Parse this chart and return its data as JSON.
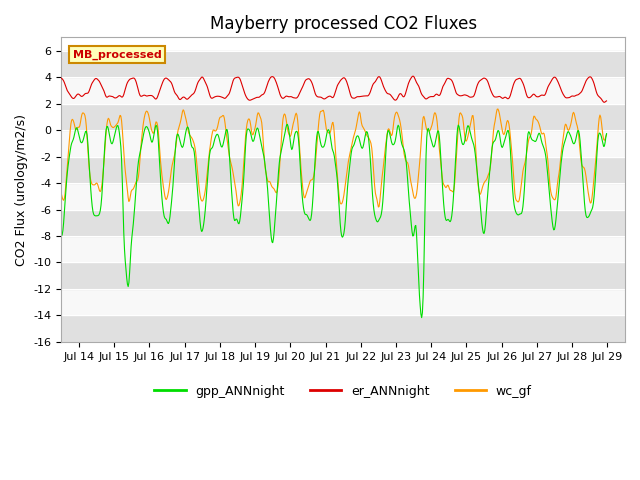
{
  "title": "Mayberry processed CO2 Fluxes",
  "ylabel": "CO2 Flux (urology/m2/s)",
  "xlabel": "",
  "ylim": [
    -16,
    7
  ],
  "yticks": [
    -16,
    -14,
    -12,
    -10,
    -8,
    -6,
    -4,
    -2,
    0,
    2,
    4,
    6
  ],
  "colors": {
    "gpp": "#00dd00",
    "er": "#dd0000",
    "wc": "#ff9900",
    "band_light": "#e0e0e0",
    "band_dark": "#f8f8f8"
  },
  "legend_labels": [
    "gpp_ANNnight",
    "er_ANNnight",
    "wc_gf"
  ],
  "mb_label": "MB_processed",
  "title_fontsize": 12,
  "axis_label_fontsize": 9,
  "tick_fontsize": 8,
  "n_days": 16,
  "pts_per_day": 48
}
